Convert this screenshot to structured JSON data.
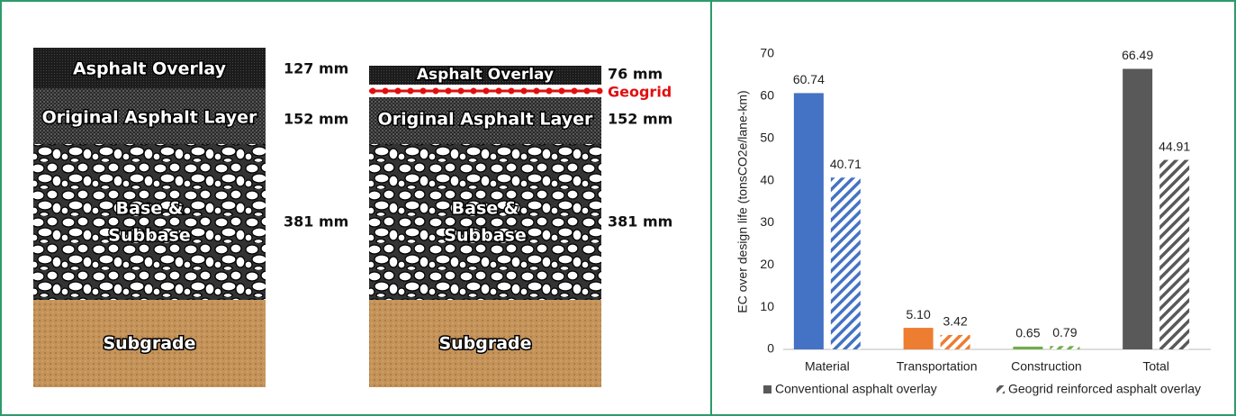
{
  "diagram": {
    "columns": [
      {
        "layers": [
          {
            "label": "Asphalt Overlay",
            "thickness": "127 mm"
          },
          {
            "label": "Original Asphalt Layer",
            "thickness": "152 mm"
          },
          {
            "label_lines": [
              "Base &",
              "Subbase"
            ],
            "thickness": "381 mm"
          },
          {
            "label": "Subgrade"
          }
        ]
      },
      {
        "layers": [
          {
            "label": "Asphalt Overlay",
            "thickness": "76 mm"
          },
          {
            "label": "Original Asphalt Layer",
            "thickness": "152 mm"
          },
          {
            "label_lines": [
              "Base &",
              "Subbase"
            ],
            "thickness": "381 mm"
          },
          {
            "label": "Subgrade"
          }
        ],
        "geogrid_label": "Geogrid"
      }
    ]
  },
  "chart_data": {
    "type": "bar",
    "y_label": "EC over design life (tonsCO2e/lane-km)",
    "categories": [
      "Material",
      "Transportation",
      "Construction",
      "Total"
    ],
    "category_colors": [
      "#4472c4",
      "#ed7d31",
      "#70ad47",
      "#595959"
    ],
    "series": [
      {
        "name": "Conventional asphalt overlay",
        "color": "#595959",
        "hatched": false,
        "values": [
          60.74,
          5.1,
          0.65,
          66.49
        ],
        "value_labels": [
          "60.74",
          "5.10",
          "0.65",
          "66.49"
        ]
      },
      {
        "name": "Geogrid reinforced asphalt overlay",
        "color": "#595959",
        "hatched": true,
        "values": [
          40.71,
          3.42,
          0.79,
          44.91
        ],
        "value_labels": [
          "40.71",
          "3.42",
          "0.79",
          "44.91"
        ]
      }
    ],
    "ylim": [
      0,
      70
    ],
    "yticks": [
      0,
      10,
      20,
      30,
      40,
      50,
      60,
      70
    ],
    "grid": false,
    "legend": "bottom"
  }
}
